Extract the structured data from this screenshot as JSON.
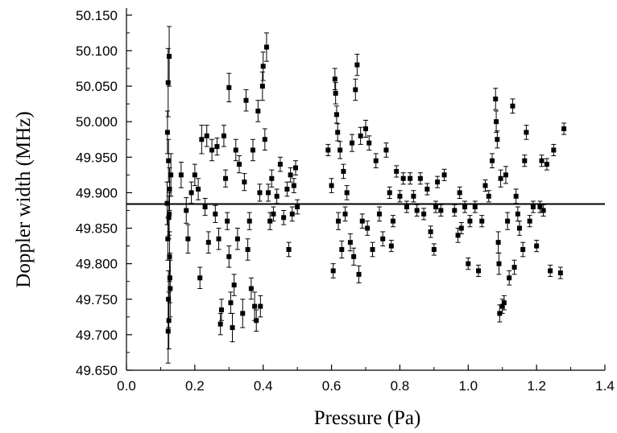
{
  "chart_data": {
    "type": "scatter",
    "title": "",
    "xlabel": "Pressure (Pa)",
    "ylabel": "Doppler width (MHz)",
    "xlim": [
      0.0,
      1.4
    ],
    "ylim": [
      49.65,
      50.16
    ],
    "x_ticks": [
      "0.0",
      "0.2",
      "0.4",
      "0.6",
      "0.8",
      "1.0",
      "1.2",
      "1.4"
    ],
    "y_ticks": [
      "49.650",
      "49.700",
      "49.750",
      "49.800",
      "49.850",
      "49.900",
      "49.950",
      "50.000",
      "50.050",
      "50.100",
      "50.150"
    ],
    "grid": false,
    "legend": "none",
    "marker": "filled square with vertical error bars",
    "mean_line": 49.884,
    "colors": {
      "marks": "#000000",
      "background": "#ffffff"
    },
    "points": [
      [
        0.122,
        50.055,
        0.048
      ],
      [
        0.125,
        50.092,
        0.042
      ],
      [
        0.12,
        49.985,
        0.03
      ],
      [
        0.123,
        49.945,
        0.03
      ],
      [
        0.126,
        49.905,
        0.03
      ],
      [
        0.124,
        49.865,
        0.03
      ],
      [
        0.121,
        49.835,
        0.03
      ],
      [
        0.127,
        49.78,
        0.035
      ],
      [
        0.124,
        49.72,
        0.04
      ],
      [
        0.122,
        49.705,
        0.045
      ],
      [
        0.128,
        49.765,
        0.04
      ],
      [
        0.125,
        49.87,
        0.03
      ],
      [
        0.13,
        49.925,
        0.03
      ],
      [
        0.119,
        49.885,
        0.03
      ],
      [
        0.126,
        49.81,
        0.035
      ],
      [
        0.123,
        49.75,
        0.04
      ],
      [
        0.16,
        49.925,
        0.018
      ],
      [
        0.175,
        49.875,
        0.018
      ],
      [
        0.18,
        49.835,
        0.02
      ],
      [
        0.19,
        49.9,
        0.015
      ],
      [
        0.2,
        49.925,
        0.015
      ],
      [
        0.21,
        49.905,
        0.015
      ],
      [
        0.215,
        49.78,
        0.015
      ],
      [
        0.22,
        49.975,
        0.02
      ],
      [
        0.23,
        49.88,
        0.012
      ],
      [
        0.235,
        49.98,
        0.015
      ],
      [
        0.24,
        49.83,
        0.015
      ],
      [
        0.25,
        49.96,
        0.015
      ],
      [
        0.26,
        49.87,
        0.012
      ],
      [
        0.265,
        49.965,
        0.012
      ],
      [
        0.27,
        49.835,
        0.015
      ],
      [
        0.275,
        49.715,
        0.015
      ],
      [
        0.278,
        49.735,
        0.015
      ],
      [
        0.285,
        49.98,
        0.015
      ],
      [
        0.29,
        49.92,
        0.012
      ],
      [
        0.295,
        49.86,
        0.012
      ],
      [
        0.3,
        49.81,
        0.015
      ],
      [
        0.305,
        49.745,
        0.015
      ],
      [
        0.31,
        49.71,
        0.02
      ],
      [
        0.3,
        50.048,
        0.02
      ],
      [
        0.315,
        49.77,
        0.015
      ],
      [
        0.32,
        49.96,
        0.015
      ],
      [
        0.325,
        49.835,
        0.015
      ],
      [
        0.33,
        49.94,
        0.012
      ],
      [
        0.34,
        49.73,
        0.02
      ],
      [
        0.345,
        49.915,
        0.012
      ],
      [
        0.35,
        50.03,
        0.015
      ],
      [
        0.355,
        49.82,
        0.015
      ],
      [
        0.36,
        49.86,
        0.012
      ],
      [
        0.365,
        49.765,
        0.015
      ],
      [
        0.37,
        49.96,
        0.015
      ],
      [
        0.375,
        49.74,
        0.02
      ],
      [
        0.38,
        49.72,
        0.015
      ],
      [
        0.385,
        50.015,
        0.015
      ],
      [
        0.39,
        49.9,
        0.012
      ],
      [
        0.392,
        49.74,
        0.015
      ],
      [
        0.398,
        50.05,
        0.02
      ],
      [
        0.4,
        50.078,
        0.02
      ],
      [
        0.405,
        49.975,
        0.015
      ],
      [
        0.41,
        50.105,
        0.02
      ],
      [
        0.415,
        49.9,
        0.012
      ],
      [
        0.42,
        49.86,
        0.012
      ],
      [
        0.425,
        49.92,
        0.012
      ],
      [
        0.43,
        49.87,
        0.01
      ],
      [
        0.44,
        49.895,
        0.01
      ],
      [
        0.45,
        49.94,
        0.01
      ],
      [
        0.46,
        49.865,
        0.01
      ],
      [
        0.47,
        49.905,
        0.01
      ],
      [
        0.475,
        49.82,
        0.01
      ],
      [
        0.48,
        49.925,
        0.01
      ],
      [
        0.485,
        49.87,
        0.01
      ],
      [
        0.49,
        49.91,
        0.01
      ],
      [
        0.495,
        49.935,
        0.01
      ],
      [
        0.5,
        49.88,
        0.01
      ],
      [
        0.59,
        49.96,
        0.008
      ],
      [
        0.6,
        49.91,
        0.01
      ],
      [
        0.605,
        49.79,
        0.01
      ],
      [
        0.61,
        50.06,
        0.015
      ],
      [
        0.612,
        50.04,
        0.015
      ],
      [
        0.615,
        50.01,
        0.012
      ],
      [
        0.618,
        49.985,
        0.012
      ],
      [
        0.62,
        49.86,
        0.012
      ],
      [
        0.625,
        49.96,
        0.012
      ],
      [
        0.63,
        49.82,
        0.012
      ],
      [
        0.635,
        49.93,
        0.01
      ],
      [
        0.64,
        49.87,
        0.01
      ],
      [
        0.645,
        49.9,
        0.01
      ],
      [
        0.655,
        49.83,
        0.012
      ],
      [
        0.66,
        49.97,
        0.012
      ],
      [
        0.665,
        49.81,
        0.012
      ],
      [
        0.67,
        50.045,
        0.015
      ],
      [
        0.675,
        50.08,
        0.015
      ],
      [
        0.68,
        49.785,
        0.012
      ],
      [
        0.685,
        49.98,
        0.012
      ],
      [
        0.69,
        49.86,
        0.01
      ],
      [
        0.7,
        49.99,
        0.012
      ],
      [
        0.705,
        49.85,
        0.01
      ],
      [
        0.71,
        49.97,
        0.01
      ],
      [
        0.72,
        49.82,
        0.01
      ],
      [
        0.73,
        49.945,
        0.01
      ],
      [
        0.74,
        49.87,
        0.01
      ],
      [
        0.75,
        49.835,
        0.01
      ],
      [
        0.76,
        49.96,
        0.01
      ],
      [
        0.77,
        49.9,
        0.008
      ],
      [
        0.775,
        49.825,
        0.008
      ],
      [
        0.78,
        49.86,
        0.008
      ],
      [
        0.79,
        49.93,
        0.008
      ],
      [
        0.8,
        49.895,
        0.008
      ],
      [
        0.81,
        49.92,
        0.008
      ],
      [
        0.82,
        49.88,
        0.008
      ],
      [
        0.83,
        49.92,
        0.008
      ],
      [
        0.84,
        49.895,
        0.008
      ],
      [
        0.85,
        49.875,
        0.008
      ],
      [
        0.86,
        49.92,
        0.008
      ],
      [
        0.87,
        49.87,
        0.008
      ],
      [
        0.88,
        49.905,
        0.008
      ],
      [
        0.89,
        49.845,
        0.008
      ],
      [
        0.9,
        49.82,
        0.008
      ],
      [
        0.905,
        49.88,
        0.008
      ],
      [
        0.91,
        49.915,
        0.008
      ],
      [
        0.92,
        49.875,
        0.008
      ],
      [
        0.93,
        49.925,
        0.008
      ],
      [
        0.96,
        49.875,
        0.008
      ],
      [
        0.97,
        49.84,
        0.01
      ],
      [
        0.975,
        49.9,
        0.008
      ],
      [
        0.98,
        49.85,
        0.008
      ],
      [
        0.99,
        49.88,
        0.008
      ],
      [
        1.0,
        49.8,
        0.008
      ],
      [
        1.005,
        49.86,
        0.008
      ],
      [
        1.02,
        49.88,
        0.008
      ],
      [
        1.03,
        49.79,
        0.008
      ],
      [
        1.04,
        49.86,
        0.008
      ],
      [
        1.05,
        49.91,
        0.008
      ],
      [
        1.06,
        49.895,
        0.008
      ],
      [
        1.07,
        49.945,
        0.01
      ],
      [
        1.08,
        50.032,
        0.015
      ],
      [
        1.082,
        50.0,
        0.015
      ],
      [
        1.085,
        49.975,
        0.012
      ],
      [
        1.088,
        49.83,
        0.015
      ],
      [
        1.09,
        49.8,
        0.015
      ],
      [
        1.092,
        49.73,
        0.012
      ],
      [
        1.095,
        49.92,
        0.012
      ],
      [
        1.1,
        49.74,
        0.01
      ],
      [
        1.105,
        49.745,
        0.01
      ],
      [
        1.11,
        49.925,
        0.012
      ],
      [
        1.115,
        49.86,
        0.012
      ],
      [
        1.12,
        49.78,
        0.01
      ],
      [
        1.13,
        50.022,
        0.01
      ],
      [
        1.135,
        49.795,
        0.01
      ],
      [
        1.14,
        49.895,
        0.01
      ],
      [
        1.145,
        49.87,
        0.01
      ],
      [
        1.15,
        49.85,
        0.01
      ],
      [
        1.16,
        49.82,
        0.01
      ],
      [
        1.165,
        49.945,
        0.008
      ],
      [
        1.17,
        49.985,
        0.01
      ],
      [
        1.18,
        49.86,
        0.008
      ],
      [
        1.19,
        49.88,
        0.008
      ],
      [
        1.2,
        49.825,
        0.008
      ],
      [
        1.21,
        49.88,
        0.008
      ],
      [
        1.215,
        49.945,
        0.008
      ],
      [
        1.22,
        49.875,
        0.008
      ],
      [
        1.23,
        49.94,
        0.008
      ],
      [
        1.24,
        49.79,
        0.008
      ],
      [
        1.25,
        49.96,
        0.008
      ],
      [
        1.27,
        49.787,
        0.008
      ],
      [
        1.28,
        49.99,
        0.008
      ]
    ]
  }
}
